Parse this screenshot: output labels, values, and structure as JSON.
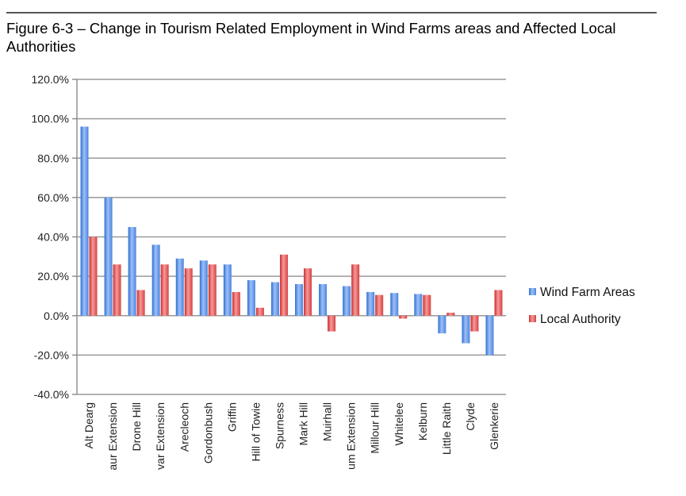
{
  "chart_data": {
    "type": "bar",
    "title": "Figure 6-3 – Change in Tourism Related Employment in Wind Farms areas and Affected Local Authorities",
    "categories": [
      "Alt Dearg",
      "aur Extension",
      "Drone Hill",
      "var Extension",
      "Arecleoch",
      "Gordonbush",
      "Griffin",
      "Hill of Towie",
      "Spurness",
      "Mark Hill",
      "Muirhall",
      "um Extension",
      "Millour Hill",
      "Whitelee",
      "Kelburn",
      "Little Raith",
      "Clyde",
      "Glenkerie"
    ],
    "series": [
      {
        "name": "Wind Farm Areas",
        "color": "#5b8fe0",
        "values": [
          96,
          60,
          45,
          36,
          29,
          28,
          26,
          18,
          17,
          16,
          16,
          15,
          12,
          11.5,
          11,
          -9,
          -14,
          -20
        ]
      },
      {
        "name": "Local Authority",
        "color": "#e04848",
        "values": [
          40,
          26,
          13,
          26,
          24,
          26,
          12,
          4,
          31,
          24,
          -8,
          26,
          10.5,
          -1.5,
          10.5,
          1.5,
          -8,
          13
        ]
      }
    ],
    "ylim": [
      -40,
      120
    ],
    "yticks": [
      -40,
      -20,
      0,
      20,
      40,
      60,
      80,
      100,
      120
    ],
    "ytick_labels": [
      "-40.0%",
      "-20.0%",
      "0.0%",
      "20.0%",
      "40.0%",
      "60.0%",
      "80.0%",
      "100.0%",
      "120.0%"
    ],
    "grid": true,
    "legend_position": "right"
  }
}
